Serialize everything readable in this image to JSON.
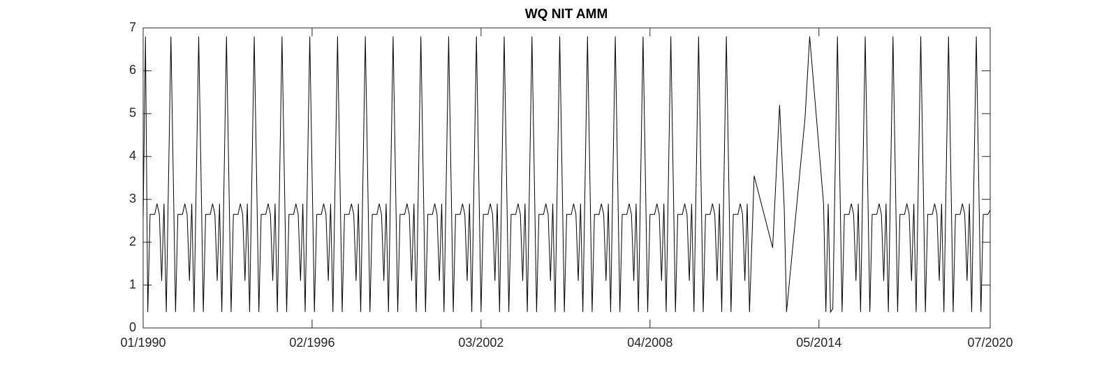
{
  "chart_data": {
    "type": "line",
    "title": "WQ NIT AMM",
    "color": "#000000",
    "xlim": [
      "01/1990",
      "07/2020"
    ],
    "xticks": [
      "01/1990",
      "02/1996",
      "03/2002",
      "04/2008",
      "05/2014",
      "07/2020"
    ],
    "ylim": [
      0,
      7
    ],
    "yticks": [
      0,
      1,
      2,
      3,
      4,
      5,
      6,
      7
    ],
    "x": [
      "01/1990",
      "02/1990",
      "03/1990",
      "04/1990",
      "06/1990",
      "07/1990",
      "08/1990",
      "09/1990",
      "10/1990",
      "11/1990",
      "01/1991",
      "03/1991",
      "04/1991",
      "06/1991",
      "07/1991",
      "08/1991",
      "09/1991",
      "10/1991",
      "11/1991",
      "01/1992",
      "03/1992",
      "04/1992",
      "06/1992",
      "07/1992",
      "08/1992",
      "09/1992",
      "10/1992",
      "11/1992",
      "01/1993",
      "03/1993",
      "04/1993",
      "06/1993",
      "07/1993",
      "08/1993",
      "09/1993",
      "10/1993",
      "11/1993",
      "01/1994",
      "03/1994",
      "04/1994",
      "06/1994",
      "07/1994",
      "08/1994",
      "09/1994",
      "10/1994",
      "11/1994",
      "01/1995",
      "03/1995",
      "04/1995",
      "06/1995",
      "07/1995",
      "08/1995",
      "09/1995",
      "10/1995",
      "11/1995",
      "01/1996",
      "03/1996",
      "04/1996",
      "06/1996",
      "07/1996",
      "08/1996",
      "09/1996",
      "10/1996",
      "11/1996",
      "01/1997",
      "03/1997",
      "04/1997",
      "06/1997",
      "07/1997",
      "08/1997",
      "09/1997",
      "10/1997",
      "11/1997",
      "01/1998",
      "03/1998",
      "04/1998",
      "06/1998",
      "07/1998",
      "08/1998",
      "09/1998",
      "10/1998",
      "11/1998",
      "01/1999",
      "03/1999",
      "04/1999",
      "06/1999",
      "07/1999",
      "08/1999",
      "09/1999",
      "10/1999",
      "11/1999",
      "01/2000",
      "03/2000",
      "04/2000",
      "06/2000",
      "07/2000",
      "08/2000",
      "09/2000",
      "10/2000",
      "11/2000",
      "01/2001",
      "03/2001",
      "04/2001",
      "06/2001",
      "07/2001",
      "08/2001",
      "09/2001",
      "10/2001",
      "11/2001",
      "01/2002",
      "03/2002",
      "04/2002",
      "06/2002",
      "07/2002",
      "08/2002",
      "09/2002",
      "10/2002",
      "11/2002",
      "01/2003",
      "03/2003",
      "04/2003",
      "06/2003",
      "07/2003",
      "08/2003",
      "09/2003",
      "10/2003",
      "11/2003",
      "01/2004",
      "03/2004",
      "04/2004",
      "06/2004",
      "07/2004",
      "08/2004",
      "09/2004",
      "10/2004",
      "11/2004",
      "01/2005",
      "03/2005",
      "04/2005",
      "06/2005",
      "07/2005",
      "08/2005",
      "09/2005",
      "10/2005",
      "11/2005",
      "01/2006",
      "03/2006",
      "04/2006",
      "06/2006",
      "07/2006",
      "08/2006",
      "09/2006",
      "10/2006",
      "11/2006",
      "01/2007",
      "03/2007",
      "04/2007",
      "06/2007",
      "07/2007",
      "08/2007",
      "09/2007",
      "10/2007",
      "11/2007",
      "01/2008",
      "03/2008",
      "04/2008",
      "06/2008",
      "07/2008",
      "08/2008",
      "09/2008",
      "10/2008",
      "11/2008",
      "01/2009",
      "03/2009",
      "04/2009",
      "06/2009",
      "07/2009",
      "08/2009",
      "09/2009",
      "10/2009",
      "11/2009",
      "01/2010",
      "03/2010",
      "04/2010",
      "06/2010",
      "07/2010",
      "08/2010",
      "09/2010",
      "10/2010",
      "11/2010",
      "01/2011",
      "03/2011",
      "04/2011",
      "06/2011",
      "07/2011",
      "08/2011",
      "09/2011",
      "10/2011",
      "11/2011",
      "01/2012",
      "09/2012",
      "12/2012",
      "02/2013",
      "03/2013",
      "11/2013",
      "01/2014",
      "07/2014",
      "08/2014",
      "09/2014",
      "10/2014",
      "11/2014",
      "01/2015",
      "03/2015",
      "04/2015",
      "06/2015",
      "07/2015",
      "08/2015",
      "09/2015",
      "10/2015",
      "11/2015",
      "01/2016",
      "03/2016",
      "04/2016",
      "06/2016",
      "07/2016",
      "08/2016",
      "09/2016",
      "10/2016",
      "11/2016",
      "01/2017",
      "03/2017",
      "04/2017",
      "06/2017",
      "07/2017",
      "08/2017",
      "09/2017",
      "10/2017",
      "11/2017",
      "01/2018",
      "03/2018",
      "04/2018",
      "06/2018",
      "07/2018",
      "08/2018",
      "09/2018",
      "10/2018",
      "11/2018",
      "01/2019",
      "03/2019",
      "04/2019",
      "06/2019",
      "07/2019",
      "08/2019",
      "09/2019",
      "10/2019",
      "11/2019",
      "01/2020",
      "03/2020",
      "04/2020",
      "06/2020",
      "07/2020"
    ],
    "values": [
      2.6,
      6.8,
      0.37,
      2.65,
      2.65,
      2.9,
      2.65,
      1.1,
      2.9,
      0.37,
      6.8,
      0.37,
      2.65,
      2.65,
      2.9,
      2.65,
      1.1,
      2.9,
      0.37,
      6.8,
      0.37,
      2.65,
      2.65,
      2.9,
      2.65,
      1.1,
      2.9,
      0.37,
      6.8,
      0.37,
      2.65,
      2.65,
      2.9,
      2.65,
      1.1,
      2.9,
      0.37,
      6.8,
      0.37,
      2.65,
      2.65,
      2.9,
      2.65,
      1.1,
      2.9,
      0.37,
      6.8,
      0.37,
      2.65,
      2.65,
      2.9,
      2.65,
      1.1,
      2.9,
      0.37,
      6.8,
      0.37,
      2.65,
      2.65,
      2.9,
      2.65,
      1.1,
      2.9,
      0.37,
      6.8,
      0.37,
      2.65,
      2.65,
      2.9,
      2.65,
      1.1,
      2.9,
      0.37,
      6.8,
      0.37,
      2.65,
      2.65,
      2.9,
      2.65,
      1.1,
      2.9,
      0.37,
      6.8,
      0.37,
      2.65,
      2.65,
      2.9,
      2.65,
      1.1,
      2.9,
      0.37,
      6.8,
      0.37,
      2.65,
      2.65,
      2.9,
      2.65,
      1.1,
      2.9,
      0.37,
      6.8,
      0.37,
      2.65,
      2.65,
      2.9,
      2.65,
      1.1,
      2.9,
      0.37,
      6.8,
      0.37,
      2.65,
      2.65,
      2.9,
      2.65,
      1.1,
      2.9,
      0.37,
      6.8,
      0.37,
      2.65,
      2.65,
      2.9,
      2.65,
      1.1,
      2.9,
      0.37,
      6.8,
      0.37,
      2.65,
      2.65,
      2.9,
      2.65,
      1.1,
      2.9,
      0.37,
      6.8,
      0.37,
      2.65,
      2.65,
      2.9,
      2.65,
      1.1,
      2.9,
      0.37,
      6.8,
      0.37,
      2.65,
      2.65,
      2.9,
      2.65,
      1.1,
      2.9,
      0.37,
      6.8,
      0.37,
      2.65,
      2.65,
      2.9,
      2.65,
      1.1,
      2.9,
      0.37,
      6.8,
      0.37,
      2.65,
      2.65,
      2.9,
      2.65,
      1.1,
      2.9,
      0.37,
      6.8,
      0.37,
      2.65,
      2.65,
      2.9,
      2.65,
      1.1,
      2.9,
      0.37,
      6.8,
      0.37,
      2.65,
      2.65,
      2.9,
      2.65,
      1.1,
      2.9,
      0.37,
      6.8,
      0.37,
      2.65,
      2.65,
      2.9,
      2.65,
      1.1,
      2.9,
      0.37,
      3.55,
      1.87,
      5.2,
      2.8,
      0.37,
      4.9,
      6.8,
      2.9,
      0.37,
      2.9,
      0.37,
      0.45,
      6.8,
      0.37,
      2.65,
      2.65,
      2.9,
      2.65,
      1.1,
      2.9,
      0.37,
      6.8,
      0.37,
      2.65,
      2.65,
      2.9,
      2.65,
      1.1,
      2.9,
      0.37,
      6.8,
      0.37,
      2.65,
      2.65,
      2.9,
      2.65,
      1.1,
      2.9,
      0.37,
      6.8,
      0.37,
      2.65,
      2.65,
      2.9,
      2.65,
      1.1,
      2.9,
      0.37,
      6.8,
      0.37,
      2.65,
      2.65,
      2.9,
      2.65,
      1.1,
      2.9,
      0.37,
      6.8,
      0.37,
      2.65,
      2.65,
      2.75
    ]
  }
}
